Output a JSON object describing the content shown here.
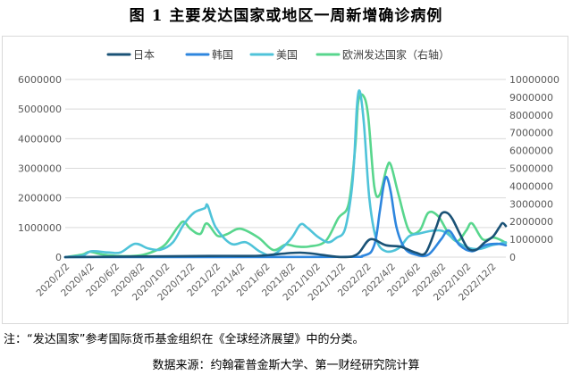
{
  "figure": {
    "title": "图 1  主要发达国家或地区一周新增确诊病例",
    "footnote": "注：“发达国家”参考国际货币基金组织在《全球经济展望》中的分类。",
    "source": "数据来源：约翰霍普金斯大学、第一财经研究院计算"
  },
  "colors": {
    "japan": "#1a5276",
    "korea": "#2e86de",
    "usa": "#4fc3d9",
    "europe": "#58d68d",
    "grid": "#d9d9d9",
    "axis_text": "#595959"
  },
  "chart_data": {
    "type": "line",
    "legend_position": "top",
    "grid": true,
    "x_ticks": [
      "2020/2/2",
      "2020/4/2",
      "2020/6/2",
      "2020/8/2",
      "2020/10/2",
      "2020/12/2",
      "2021/2/2",
      "2021/4/2",
      "2021/6/2",
      "2021/8/2",
      "2021/10/2",
      "2021/12/2",
      "2022/2/2",
      "2022/4/2",
      "2022/6/2",
      "2022/8/2",
      "2022/10/2",
      "2022/12/2"
    ],
    "y_left": {
      "ticks": [
        "0",
        "1000000",
        "2000000",
        "3000000",
        "4000000",
        "5000000",
        "6000000"
      ],
      "range": [
        0,
        6000000
      ]
    },
    "y_right": {
      "label": "右轴",
      "ticks": [
        "0",
        "1000000",
        "2000000",
        "3000000",
        "4000000",
        "5000000",
        "6000000",
        "7000000",
        "8000000",
        "9000000",
        "10000000"
      ],
      "range": [
        0,
        10000000
      ]
    },
    "series": [
      {
        "name": "日本",
        "key": "japan",
        "axis": "left",
        "color": "#1a5276",
        "points": [
          [
            "2020-02-02",
            0
          ],
          [
            "2021-01-15",
            40000
          ],
          [
            "2021-05-15",
            45000
          ],
          [
            "2021-08-25",
            150000
          ],
          [
            "2021-12-01",
            2000
          ],
          [
            "2022-01-10",
            100000
          ],
          [
            "2022-02-10",
            600000
          ],
          [
            "2022-03-20",
            400000
          ],
          [
            "2022-04-25",
            350000
          ],
          [
            "2022-06-01",
            150000
          ],
          [
            "2022-06-25",
            150000
          ],
          [
            "2022-07-20",
            1000000
          ],
          [
            "2022-08-01",
            1450000
          ],
          [
            "2022-08-15",
            1500000
          ],
          [
            "2022-08-28",
            1300000
          ],
          [
            "2022-09-15",
            800000
          ],
          [
            "2022-10-05",
            300000
          ],
          [
            "2022-10-25",
            250000
          ],
          [
            "2022-11-15",
            500000
          ],
          [
            "2022-12-05",
            700000
          ],
          [
            "2022-12-20",
            1000000
          ],
          [
            "2022-12-28",
            1150000
          ],
          [
            "2023-01-05",
            1050000
          ]
        ]
      },
      {
        "name": "韩国",
        "key": "korea",
        "axis": "left",
        "color": "#2e86de",
        "points": [
          [
            "2020-02-02",
            0
          ],
          [
            "2021-11-01",
            5000
          ],
          [
            "2022-01-25",
            50000
          ],
          [
            "2022-02-20",
            400000
          ],
          [
            "2022-03-05",
            1500000
          ],
          [
            "2022-03-15",
            2450000
          ],
          [
            "2022-03-22",
            2700000
          ],
          [
            "2022-04-01",
            2200000
          ],
          [
            "2022-04-15",
            1000000
          ],
          [
            "2022-05-05",
            300000
          ],
          [
            "2022-06-01",
            80000
          ],
          [
            "2022-07-01",
            80000
          ],
          [
            "2022-08-01",
            600000
          ],
          [
            "2022-08-20",
            900000
          ],
          [
            "2022-09-15",
            400000
          ],
          [
            "2022-10-15",
            200000
          ],
          [
            "2022-11-15",
            400000
          ],
          [
            "2022-12-15",
            450000
          ],
          [
            "2023-01-05",
            400000
          ]
        ]
      },
      {
        "name": "美国",
        "key": "usa",
        "axis": "left",
        "color": "#4fc3d9",
        "points": [
          [
            "2020-02-02",
            0
          ],
          [
            "2020-03-15",
            50000
          ],
          [
            "2020-04-05",
            200000
          ],
          [
            "2020-05-15",
            160000
          ],
          [
            "2020-06-15",
            160000
          ],
          [
            "2020-07-20",
            450000
          ],
          [
            "2020-08-20",
            300000
          ],
          [
            "2020-09-20",
            250000
          ],
          [
            "2020-10-20",
            500000
          ],
          [
            "2020-11-15",
            1100000
          ],
          [
            "2020-12-10",
            1500000
          ],
          [
            "2021-01-05",
            1650000
          ],
          [
            "2021-01-12",
            1750000
          ],
          [
            "2021-02-01",
            1000000
          ],
          [
            "2021-03-10",
            450000
          ],
          [
            "2021-04-15",
            500000
          ],
          [
            "2021-05-20",
            180000
          ],
          [
            "2021-06-20",
            80000
          ],
          [
            "2021-08-01",
            600000
          ],
          [
            "2021-08-25",
            1100000
          ],
          [
            "2021-09-10",
            1000000
          ],
          [
            "2021-10-05",
            700000
          ],
          [
            "2021-10-31",
            500000
          ],
          [
            "2021-11-20",
            650000
          ],
          [
            "2021-12-10",
            900000
          ],
          [
            "2021-12-25",
            2000000
          ],
          [
            "2022-01-02",
            3200000
          ],
          [
            "2022-01-09",
            5100000
          ],
          [
            "2022-01-16",
            5600000
          ],
          [
            "2022-01-26",
            4500000
          ],
          [
            "2022-02-08",
            2000000
          ],
          [
            "2022-02-25",
            600000
          ],
          [
            "2022-03-20",
            200000
          ],
          [
            "2022-04-20",
            300000
          ],
          [
            "2022-05-15",
            700000
          ],
          [
            "2022-06-10",
            800000
          ],
          [
            "2022-07-15",
            900000
          ],
          [
            "2022-08-10",
            850000
          ],
          [
            "2022-09-10",
            500000
          ],
          [
            "2022-10-10",
            300000
          ],
          [
            "2022-11-05",
            280000
          ],
          [
            "2022-12-01",
            400000
          ],
          [
            "2022-12-20",
            450000
          ],
          [
            "2023-01-05",
            500000
          ]
        ]
      },
      {
        "name": "欧洲发达国家（右轴）",
        "key": "europe",
        "axis": "right",
        "color": "#58d68d",
        "points": [
          [
            "2020-02-02",
            0
          ],
          [
            "2020-03-15",
            150000
          ],
          [
            "2020-04-01",
            300000
          ],
          [
            "2020-05-01",
            150000
          ],
          [
            "2020-06-15",
            60000
          ],
          [
            "2020-08-01",
            100000
          ],
          [
            "2020-09-01",
            300000
          ],
          [
            "2020-10-01",
            700000
          ],
          [
            "2020-11-01",
            1700000
          ],
          [
            "2020-11-15",
            2000000
          ],
          [
            "2020-12-01",
            1600000
          ],
          [
            "2020-12-25",
            1300000
          ],
          [
            "2021-01-10",
            1900000
          ],
          [
            "2021-02-05",
            1200000
          ],
          [
            "2021-03-01",
            1300000
          ],
          [
            "2021-04-01",
            1600000
          ],
          [
            "2021-05-15",
            1100000
          ],
          [
            "2021-06-20",
            400000
          ],
          [
            "2021-07-20",
            700000
          ],
          [
            "2021-08-15",
            600000
          ],
          [
            "2021-09-15",
            600000
          ],
          [
            "2021-10-25",
            900000
          ],
          [
            "2021-11-25",
            2200000
          ],
          [
            "2021-12-20",
            3000000
          ],
          [
            "2022-01-05",
            6200000
          ],
          [
            "2022-01-12",
            8700000
          ],
          [
            "2022-01-24",
            9100000
          ],
          [
            "2022-02-05",
            8000000
          ],
          [
            "2022-02-20",
            4000000
          ],
          [
            "2022-03-05",
            3500000
          ],
          [
            "2022-03-22",
            5000000
          ],
          [
            "2022-04-01",
            5200000
          ],
          [
            "2022-04-20",
            3500000
          ],
          [
            "2022-05-15",
            1500000
          ],
          [
            "2022-06-10",
            1500000
          ],
          [
            "2022-07-01",
            2500000
          ],
          [
            "2022-07-25",
            2300000
          ],
          [
            "2022-08-20",
            1300000
          ],
          [
            "2022-09-10",
            900000
          ],
          [
            "2022-10-01",
            1500000
          ],
          [
            "2022-10-15",
            1900000
          ],
          [
            "2022-11-10",
            1000000
          ],
          [
            "2022-12-05",
            1100000
          ],
          [
            "2022-12-20",
            1000000
          ],
          [
            "2023-01-05",
            800000
          ]
        ]
      }
    ]
  }
}
